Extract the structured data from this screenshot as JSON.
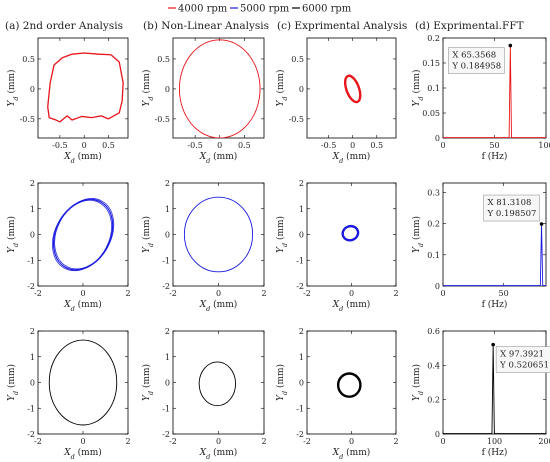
{
  "legend": {
    "entries": [
      {
        "label": "4000 rpm",
        "color": "#e8141a"
      },
      {
        "label": "5000 rpm",
        "color": "#1a1ae0"
      },
      {
        "label": "6000 rpm",
        "color": "#000000"
      }
    ],
    "placement": "top-center"
  },
  "columns": [
    {
      "title": "(a) 2nd order Analysis"
    },
    {
      "title": "(b) Non-Linear Analysis"
    },
    {
      "title": "(c) Exprimental Analysis"
    },
    {
      "title": "(d) Exprimental.FFT"
    }
  ],
  "chart_data": [
    {
      "type": "line",
      "column": "a",
      "row": 1,
      "color": "#e8141a",
      "xlabel": "X_d (mm)",
      "ylabel": "Y_d (mm)",
      "xlim": [
        -0.95,
        0.9
      ],
      "ylim": [
        -0.82,
        0.85
      ],
      "xticks": [
        -0.5,
        0,
        0.5
      ],
      "yticks": [
        -0.5,
        0,
        0.5
      ],
      "tick_labels_x": [
        "-0.5",
        "0",
        "0.5"
      ],
      "tick_labels_y": [
        "-0.5",
        "0",
        "0.5"
      ],
      "series": [
        {
          "name": "4000 rpm",
          "x": [
            -0.62,
            -0.45,
            -0.25,
            0.0,
            0.3,
            0.55,
            0.72,
            0.8,
            0.78,
            0.72,
            0.5,
            0.35,
            0.15,
            -0.05,
            -0.25,
            -0.35,
            -0.5,
            -0.58,
            -0.72,
            -0.75,
            -0.7,
            -0.62
          ],
          "y": [
            0.4,
            0.52,
            0.58,
            0.6,
            0.58,
            0.57,
            0.45,
            0.1,
            -0.2,
            -0.4,
            -0.5,
            -0.45,
            -0.48,
            -0.46,
            -0.52,
            -0.45,
            -0.55,
            -0.52,
            -0.48,
            -0.3,
            0.1,
            0.4
          ]
        }
      ]
    },
    {
      "type": "line",
      "column": "b",
      "row": 1,
      "color": "#e8141a",
      "xlabel": "X_d (mm)",
      "ylabel": "Y_d (mm)",
      "xlim": [
        -0.95,
        0.9
      ],
      "ylim": [
        -0.82,
        0.85
      ],
      "xticks": [
        -0.5,
        0,
        0.5
      ],
      "yticks": [
        -0.5,
        0,
        0.5
      ],
      "tick_labels_x": [
        "-0.5",
        "0",
        "0.5"
      ],
      "tick_labels_y": [
        "-0.5",
        "0",
        "0.5"
      ],
      "series": [
        {
          "name": "4000 rpm",
          "shape": "ellipse",
          "cx": 0,
          "cy": 0,
          "rx": 0.82,
          "ry": 0.82,
          "tilt_deg": 0
        }
      ]
    },
    {
      "type": "line",
      "column": "c",
      "row": 1,
      "color": "#e8141a",
      "xlabel": "X_d (mm)",
      "ylabel": "Y_d (mm)",
      "xlim": [
        -0.95,
        0.9
      ],
      "ylim": [
        -0.82,
        0.85
      ],
      "xticks": [
        -0.5,
        0,
        0.5
      ],
      "yticks": [
        -0.5,
        0,
        0.5
      ],
      "tick_labels_x": [
        "-0.5",
        "0",
        "0.5"
      ],
      "tick_labels_y": [
        "-0.5",
        "0",
        "0.5"
      ],
      "series": [
        {
          "name": "4000 rpm",
          "shape": "ellipse",
          "cx": 0,
          "cy": 0,
          "rx": 0.13,
          "ry": 0.23,
          "tilt_deg": 20,
          "stroke": "thick"
        }
      ]
    },
    {
      "type": "line",
      "column": "d",
      "row": 1,
      "color": "#e8141a",
      "xlabel": "f (Hz)",
      "ylabel": "Y_d (mm)",
      "xlim": [
        0,
        100
      ],
      "ylim": [
        0,
        0.2
      ],
      "xticks": [
        0,
        50,
        100
      ],
      "yticks": [
        0,
        0.05,
        0.1,
        0.15,
        0.2
      ],
      "tick_labels_x": [
        "0",
        "50",
        "100"
      ],
      "tick_labels_y": [
        "0",
        "0.05",
        "0.1",
        "0.15",
        "0.2"
      ],
      "series": [
        {
          "name": "4000 rpm",
          "peak_x": 65.3568,
          "peak_y": 0.184958
        }
      ],
      "datatip": {
        "x_label": "X 65.3568",
        "y_label": "Y 0.184958"
      }
    },
    {
      "type": "line",
      "column": "a",
      "row": 2,
      "color": "#1a1ae0",
      "xlabel": "X_d (mm)",
      "ylabel": "Y_d (mm)",
      "xlim": [
        -2,
        2
      ],
      "ylim": [
        -2,
        2
      ],
      "xticks": [
        -2,
        0,
        2
      ],
      "yticks": [
        -2,
        -1,
        0,
        1,
        2
      ],
      "tick_labels_x": [
        "-2",
        "0",
        "2"
      ],
      "tick_labels_y": [
        "-2",
        "-1",
        "0",
        "1",
        "2"
      ],
      "series": [
        {
          "name": "5000 rpm",
          "shape": "ellipse",
          "cx": 0,
          "cy": 0,
          "rx": 1.65,
          "ry": 1.05,
          "tilt_deg": 62,
          "stroke": "multi"
        }
      ]
    },
    {
      "type": "line",
      "column": "b",
      "row": 2,
      "color": "#1a1ae0",
      "xlabel": "X_d (mm)",
      "ylabel": "Y_d (mm)",
      "xlim": [
        -2,
        2
      ],
      "ylim": [
        -2,
        2
      ],
      "xticks": [
        -2,
        0,
        2
      ],
      "yticks": [
        -2,
        -1,
        0,
        1,
        2
      ],
      "tick_labels_x": [
        "-2",
        "0",
        "2"
      ],
      "tick_labels_y": [
        "-2",
        "-1",
        "0",
        "1",
        "2"
      ],
      "series": [
        {
          "name": "5000 rpm",
          "shape": "ellipse",
          "cx": 0,
          "cy": 0,
          "rx": 1.5,
          "ry": 1.45,
          "tilt_deg": 0
        }
      ]
    },
    {
      "type": "line",
      "column": "c",
      "row": 2,
      "color": "#1a1ae0",
      "xlabel": "X_d (mm)",
      "ylabel": "Y_d (mm)",
      "xlim": [
        -2,
        2
      ],
      "ylim": [
        -2,
        2
      ],
      "xticks": [
        -2,
        0,
        2
      ],
      "yticks": [
        -2,
        -1,
        0,
        1,
        2
      ],
      "tick_labels_x": [
        "-2",
        "0",
        "2"
      ],
      "tick_labels_y": [
        "-2",
        "-1",
        "0",
        "1",
        "2"
      ],
      "series": [
        {
          "name": "5000 rpm",
          "shape": "ellipse",
          "cx": -0.05,
          "cy": 0.05,
          "rx": 0.35,
          "ry": 0.27,
          "tilt_deg": 20,
          "stroke": "thick"
        }
      ]
    },
    {
      "type": "line",
      "column": "d",
      "row": 2,
      "color": "#1a1ae0",
      "xlabel": "f (Hz)",
      "ylabel": "Y_d (mm)",
      "xlim": [
        0,
        85
      ],
      "ylim": [
        0,
        0.33
      ],
      "xticks": [
        0,
        50
      ],
      "yticks": [
        0,
        0.1,
        0.2,
        0.3
      ],
      "tick_labels_x": [
        "0",
        "50"
      ],
      "tick_labels_y": [
        "0",
        "0.1",
        "0.2",
        "0.3"
      ],
      "series": [
        {
          "name": "5000 rpm",
          "peak_x": 81.3108,
          "peak_y": 0.198507
        }
      ],
      "datatip": {
        "x_label": "X 81.3108",
        "y_label": "Y 0.198507"
      }
    },
    {
      "type": "line",
      "column": "a",
      "row": 3,
      "color": "#000000",
      "xlabel": "X_d (mm)",
      "ylabel": "Y_d (mm)",
      "xlim": [
        -2,
        2
      ],
      "ylim": [
        -2,
        2
      ],
      "xticks": [
        -2,
        0,
        2
      ],
      "yticks": [
        -2,
        -1,
        0,
        1,
        2
      ],
      "tick_labels_x": [
        "-2",
        "0",
        "2"
      ],
      "tick_labels_y": [
        "-2",
        "-1",
        "0",
        "1",
        "2"
      ],
      "series": [
        {
          "name": "6000 rpm",
          "shape": "ellipse",
          "cx": 0,
          "cy": 0,
          "rx": 1.5,
          "ry": 1.65,
          "tilt_deg": 0
        }
      ]
    },
    {
      "type": "line",
      "column": "b",
      "row": 3,
      "color": "#000000",
      "xlabel": "X_d (mm)",
      "ylabel": "Y_d (mm)",
      "xlim": [
        -2,
        2
      ],
      "ylim": [
        -2,
        2
      ],
      "xticks": [
        -2,
        0,
        2
      ],
      "yticks": [
        -2,
        -1,
        0,
        1,
        2
      ],
      "tick_labels_x": [
        "-2",
        "0",
        "2"
      ],
      "tick_labels_y": [
        "-2",
        "-1",
        "0",
        "1",
        "2"
      ],
      "series": [
        {
          "name": "6000 rpm",
          "shape": "ellipse",
          "cx": -0.05,
          "cy": -0.05,
          "rx": 0.8,
          "ry": 0.85,
          "tilt_deg": 0
        }
      ]
    },
    {
      "type": "line",
      "column": "c",
      "row": 3,
      "color": "#000000",
      "xlabel": "X_d (mm)",
      "ylabel": "Y_d (mm)",
      "xlim": [
        -2,
        2
      ],
      "ylim": [
        -2,
        2
      ],
      "xticks": [
        -2,
        0,
        2
      ],
      "yticks": [
        -2,
        -1,
        0,
        1,
        2
      ],
      "tick_labels_x": [
        "-2",
        "0",
        "2"
      ],
      "tick_labels_y": [
        "-2",
        "-1",
        "0",
        "1",
        "2"
      ],
      "series": [
        {
          "name": "6000 rpm",
          "shape": "ellipse",
          "cx": -0.1,
          "cy": -0.1,
          "rx": 0.5,
          "ry": 0.45,
          "tilt_deg": 0,
          "stroke": "thick"
        }
      ]
    },
    {
      "type": "line",
      "column": "d",
      "row": 3,
      "color": "#000000",
      "xlabel": "f (Hz)",
      "ylabel": "Y_d (mm)",
      "xlim": [
        0,
        200
      ],
      "ylim": [
        0,
        0.6
      ],
      "xticks": [
        0,
        100,
        200
      ],
      "yticks": [
        0,
        0.2,
        0.4,
        0.6
      ],
      "tick_labels_x": [
        "0",
        "100",
        "200"
      ],
      "tick_labels_y": [
        "0",
        "0.2",
        "0.4",
        "0.6"
      ],
      "series": [
        {
          "name": "6000 rpm",
          "peak_x": 97.3921,
          "peak_y": 0.520651
        }
      ],
      "datatip": {
        "x_label": "X 97.3921",
        "y_label": "Y 0.520651"
      }
    }
  ]
}
